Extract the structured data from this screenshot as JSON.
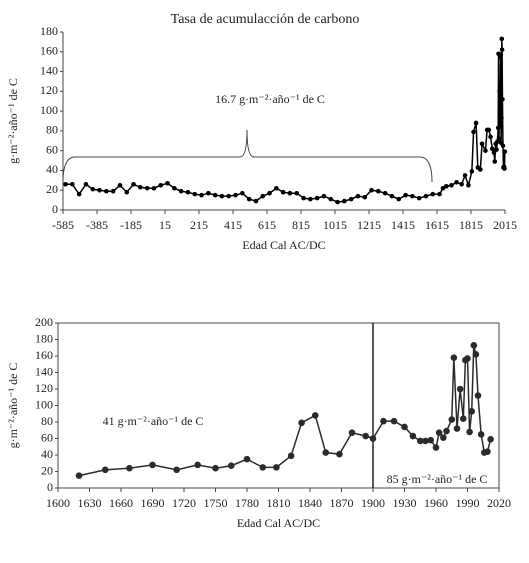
{
  "chart_data": [
    {
      "type": "line",
      "title": "Tasa de acumulacción de carbono",
      "ylabel": "g·m⁻²·año⁻¹ de C",
      "xlabel": "Edad Cal AC/DC",
      "annotations": [
        "16.7 g·m⁻²·año⁻¹ de C"
      ],
      "xlim": [
        -585,
        2015
      ],
      "xticks": [
        -585,
        -385,
        -185,
        15,
        215,
        415,
        615,
        815,
        1015,
        1215,
        1415,
        1615,
        1815,
        2015
      ],
      "ylim": [
        0,
        180
      ],
      "yticks": [
        0,
        20,
        40,
        60,
        80,
        100,
        120,
        140,
        160,
        180
      ],
      "series": [
        {
          "color": "#000000",
          "x": [
            -570,
            -530,
            -490,
            -450,
            -410,
            -370,
            -330,
            -290,
            -250,
            -210,
            -170,
            -130,
            -90,
            -50,
            -10,
            30,
            70,
            110,
            150,
            190,
            230,
            270,
            310,
            350,
            390,
            430,
            470,
            510,
            550,
            590,
            630,
            670,
            710,
            750,
            790,
            830,
            870,
            910,
            950,
            990,
            1030,
            1070,
            1110,
            1150,
            1190,
            1230,
            1270,
            1310,
            1350,
            1390,
            1430,
            1470,
            1510,
            1550,
            1590,
            1630,
            1650,
            1670,
            1700,
            1730,
            1760,
            1780,
            1800,
            1820,
            1830,
            1845,
            1855,
            1870,
            1880,
            1900,
            1910,
            1920,
            1930,
            1940,
            1950,
            1955,
            1960,
            1965,
            1970,
            1975,
            1977,
            1980,
            1983,
            1986,
            1988,
            1990,
            1992,
            1994,
            1996,
            1998,
            2000,
            2003,
            2006,
            2009,
            2012,
            2014
          ],
          "values": [
            26,
            26,
            16,
            26,
            21,
            20,
            19,
            19,
            25,
            18,
            26,
            23,
            22,
            22,
            25,
            27,
            22,
            19,
            18,
            16,
            15,
            17,
            15,
            14,
            14,
            15,
            17,
            11,
            9,
            14,
            17,
            22,
            18,
            17,
            17,
            12,
            11,
            12,
            14,
            11,
            8,
            9,
            11,
            14,
            13,
            20,
            19,
            17,
            14,
            11,
            15,
            14,
            12,
            14,
            16,
            16,
            22,
            24,
            25,
            28,
            26,
            35,
            25,
            39,
            79,
            88,
            43,
            41,
            67,
            60,
            81,
            81,
            74,
            62,
            58,
            49,
            67,
            61,
            69,
            83,
            158,
            72,
            120,
            84,
            155,
            157,
            68,
            93,
            173,
            162,
            112,
            65,
            43,
            44,
            42,
            59
          ]
        }
      ]
    },
    {
      "type": "line",
      "ylabel": "g·m⁻²·año⁻¹ de C",
      "xlabel": "Edad Cal AC/DC",
      "annotations": [
        "41 g·m⁻²·año⁻¹  de C",
        "85 g·m⁻²·año⁻¹  de C"
      ],
      "divider_x": 1900,
      "xlim": [
        1600,
        2020
      ],
      "xticks": [
        1600,
        1630,
        1660,
        1690,
        1720,
        1750,
        1780,
        1810,
        1840,
        1870,
        1900,
        1930,
        1960,
        1990,
        2020
      ],
      "ylim": [
        0,
        200
      ],
      "yticks": [
        0,
        20,
        40,
        60,
        80,
        100,
        120,
        140,
        160,
        180,
        200
      ],
      "series": [
        {
          "color": "#2b2b2b",
          "x": [
            1620,
            1645,
            1668,
            1690,
            1713,
            1733,
            1750,
            1765,
            1780,
            1795,
            1808,
            1822,
            1832,
            1845,
            1855,
            1868,
            1880,
            1893,
            1900,
            1910,
            1920,
            1930,
            1938,
            1945,
            1950,
            1955,
            1960,
            1963,
            1967,
            1970,
            1975,
            1977,
            1980,
            1983,
            1986,
            1988,
            1990,
            1992,
            1994,
            1996,
            1998,
            2000,
            2003,
            2006,
            2009,
            2012
          ],
          "values": [
            15,
            22,
            24,
            28,
            22,
            28,
            24,
            27,
            35,
            25,
            25,
            39,
            79,
            88,
            43,
            41,
            67,
            63,
            60,
            81,
            81,
            74,
            63,
            57,
            57,
            58,
            49,
            67,
            61,
            69,
            83,
            158,
            72,
            120,
            84,
            155,
            157,
            68,
            93,
            173,
            162,
            112,
            65,
            43,
            44,
            59
          ]
        }
      ]
    }
  ]
}
